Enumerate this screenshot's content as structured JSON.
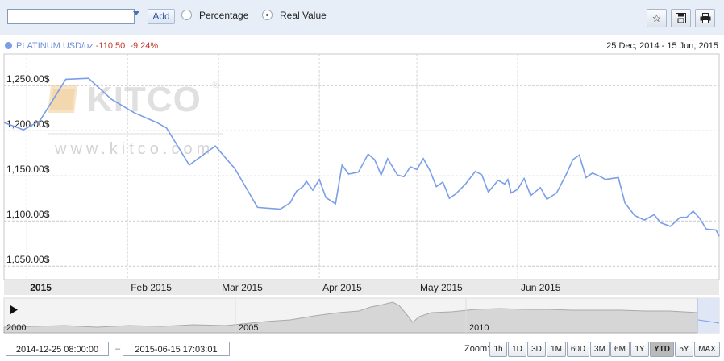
{
  "toolbar": {
    "symbol_value": "",
    "add_label": "Add",
    "mode_options": [
      {
        "label": "Percentage",
        "selected": false
      },
      {
        "label": "Real Value",
        "selected": true
      }
    ],
    "icons": [
      "star-icon",
      "save-icon",
      "print-icon"
    ]
  },
  "legend": {
    "series_name": "PLATINUM USD/oz",
    "change_abs": "-110.50",
    "change_pct": "-9.24%",
    "date_range": "25 Dec, 2014 - 15 Jun, 2015",
    "series_color": "#7a9ee8",
    "change_color": "#c0392b"
  },
  "watermark": {
    "url": "www.kitco.com"
  },
  "chart_data": {
    "type": "line",
    "xlabel": "",
    "ylabel": "",
    "ylim": [
      1035,
      1285
    ],
    "yticks": [
      1050,
      1100,
      1150,
      1200,
      1250
    ],
    "ytick_labels": [
      "1,050.00$",
      "1,100.00$",
      "1,150.00$",
      "1,200.00$",
      "1,250.00$"
    ],
    "xticks": [
      "2015-01-01",
      "2015-02-01",
      "2015-03-01",
      "2015-04-01",
      "2015-05-01",
      "2015-06-01"
    ],
    "xtick_labels": [
      "2015",
      "Feb 2015",
      "Mar 2015",
      "Apr 2015",
      "May 2015",
      "Jun 2015"
    ],
    "grid": true,
    "series": [
      {
        "name": "PLATINUM USD/oz",
        "points": [
          [
            "2014-12-25",
            1209
          ],
          [
            "2014-12-31",
            1201
          ],
          [
            "2015-01-05",
            1211
          ],
          [
            "2015-01-13",
            1257
          ],
          [
            "2015-01-20",
            1258
          ],
          [
            "2015-01-27",
            1235
          ],
          [
            "2015-02-03",
            1220
          ],
          [
            "2015-02-10",
            1209
          ],
          [
            "2015-02-13",
            1203
          ],
          [
            "2015-02-20",
            1162
          ],
          [
            "2015-02-28",
            1183
          ],
          [
            "2015-03-06",
            1158
          ],
          [
            "2015-03-13",
            1115
          ],
          [
            "2015-03-20",
            1113
          ],
          [
            "2015-03-23",
            1120
          ],
          [
            "2015-03-25",
            1133
          ],
          [
            "2015-03-27",
            1138
          ],
          [
            "2015-03-28",
            1144
          ],
          [
            "2015-03-30",
            1134
          ],
          [
            "2015-04-01",
            1146
          ],
          [
            "2015-04-03",
            1126
          ],
          [
            "2015-04-06",
            1119
          ],
          [
            "2015-04-08",
            1162
          ],
          [
            "2015-04-10",
            1152
          ],
          [
            "2015-04-13",
            1154
          ],
          [
            "2015-04-16",
            1174
          ],
          [
            "2015-04-18",
            1168
          ],
          [
            "2015-04-20",
            1151
          ],
          [
            "2015-04-22",
            1169
          ],
          [
            "2015-04-25",
            1151
          ],
          [
            "2015-04-27",
            1149
          ],
          [
            "2015-04-29",
            1160
          ],
          [
            "2015-05-01",
            1157
          ],
          [
            "2015-05-03",
            1169
          ],
          [
            "2015-05-05",
            1156
          ],
          [
            "2015-05-07",
            1138
          ],
          [
            "2015-05-09",
            1143
          ],
          [
            "2015-05-11",
            1125
          ],
          [
            "2015-05-13",
            1130
          ],
          [
            "2015-05-16",
            1141
          ],
          [
            "2015-05-19",
            1155
          ],
          [
            "2015-05-21",
            1151
          ],
          [
            "2015-05-23",
            1132
          ],
          [
            "2015-05-26",
            1145
          ],
          [
            "2015-05-28",
            1141
          ],
          [
            "2015-05-29",
            1146
          ],
          [
            "2015-05-30",
            1131
          ],
          [
            "2015-06-01",
            1135
          ],
          [
            "2015-06-03",
            1147
          ],
          [
            "2015-06-05",
            1128
          ],
          [
            "2015-06-08",
            1137
          ],
          [
            "2015-06-10",
            1124
          ],
          [
            "2015-06-13",
            1131
          ],
          [
            "2015-06-16",
            1152
          ],
          [
            "2015-06-18",
            1168
          ],
          [
            "2015-06-20",
            1173
          ],
          [
            "2015-06-22",
            1148
          ],
          [
            "2015-06-24",
            1153
          ],
          [
            "2015-06-26",
            1150
          ],
          [
            "2015-06-28",
            1146
          ],
          [
            "2015-07-02",
            1148
          ],
          [
            "2015-07-04",
            1120
          ],
          [
            "2015-07-07",
            1106
          ],
          [
            "2015-07-10",
            1101
          ],
          [
            "2015-07-13",
            1107
          ],
          [
            "2015-07-15",
            1098
          ],
          [
            "2015-07-18",
            1094
          ],
          [
            "2015-07-21",
            1104
          ],
          [
            "2015-07-23",
            1104
          ],
          [
            "2015-07-25",
            1111
          ],
          [
            "2015-07-27",
            1103
          ],
          [
            "2015-07-29",
            1091
          ],
          [
            "2015-08-01",
            1090
          ],
          [
            "2015-08-02",
            1083
          ]
        ]
      }
    ]
  },
  "navigator": {
    "year_labels": [
      "2000",
      "2005",
      "2010"
    ],
    "play_icon": "play-icon"
  },
  "range": {
    "from": "2014-12-25 08:00:00",
    "to": "2015-06-15 17:03:01"
  },
  "zoom": {
    "label": "Zoom:",
    "buttons": [
      {
        "label": "1h",
        "active": false
      },
      {
        "label": "1D",
        "active": false
      },
      {
        "label": "3D",
        "active": false
      },
      {
        "label": "1M",
        "active": false
      },
      {
        "label": "60D",
        "active": false
      },
      {
        "label": "3M",
        "active": false
      },
      {
        "label": "6M",
        "active": false
      },
      {
        "label": "1Y",
        "active": false
      },
      {
        "label": "YTD",
        "active": true
      },
      {
        "label": "5Y",
        "active": false
      },
      {
        "label": "MAX",
        "active": false
      }
    ]
  }
}
